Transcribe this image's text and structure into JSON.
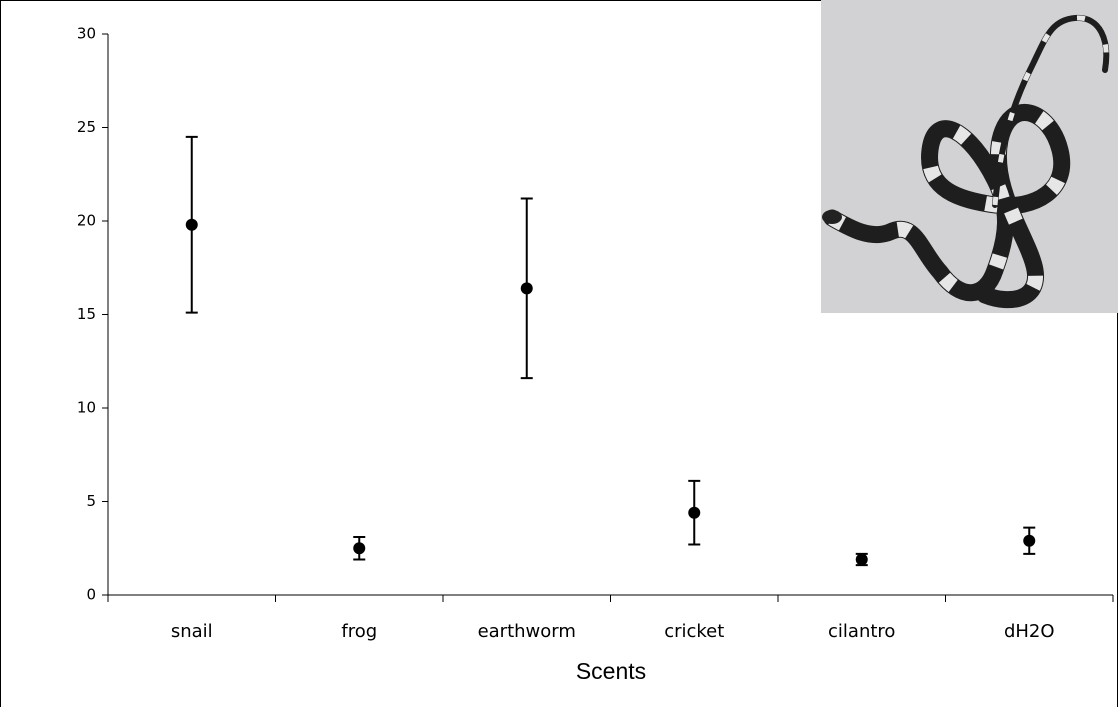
{
  "chart_data": {
    "type": "point",
    "x_label": "Scents",
    "categories": [
      "snail",
      "frog",
      "earthworm",
      "cricket",
      "cilantro",
      "dH2O"
    ],
    "values": [
      19.8,
      2.5,
      16.4,
      4.4,
      1.9,
      2.9
    ],
    "errors": [
      4.7,
      0.6,
      4.8,
      1.7,
      0.3,
      0.7
    ],
    "color": "#000000",
    "ylim": [
      0,
      30
    ],
    "yticks": [
      0,
      5,
      10,
      15,
      20,
      25,
      30
    ],
    "grid": false
  }
}
